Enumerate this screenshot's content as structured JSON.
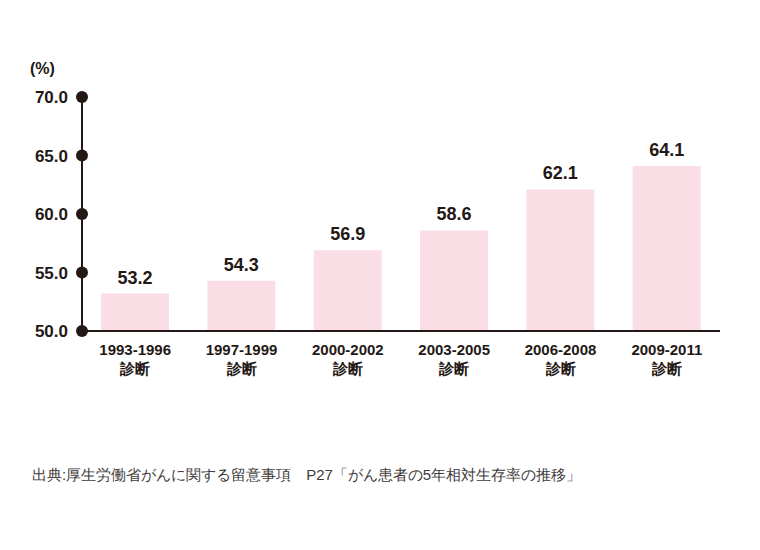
{
  "chart_data": {
    "type": "bar",
    "y_label": "(%)",
    "categories": [
      "1993-1996\n診断",
      "1997-1999\n診断",
      "2000-2002\n診断",
      "2003-2005\n診断",
      "2006-2008\n診断",
      "2009-2011\n診断"
    ],
    "values": [
      53.2,
      54.3,
      56.9,
      58.6,
      62.1,
      64.1
    ],
    "color": "#fbdde6",
    "ylim": [
      50,
      70
    ],
    "yticks": [
      {
        "value": 50,
        "label": "50.0"
      },
      {
        "value": 55,
        "label": "55.0"
      },
      {
        "value": 60,
        "label": "60.0"
      },
      {
        "value": 65,
        "label": "65.0"
      },
      {
        "value": 70,
        "label": "70.0"
      }
    ],
    "grid": false,
    "data_labels": true,
    "caption": "出典:厚生労働省がんに関する留意事項　P27「がん患者の5年相対生存率の推移」"
  }
}
